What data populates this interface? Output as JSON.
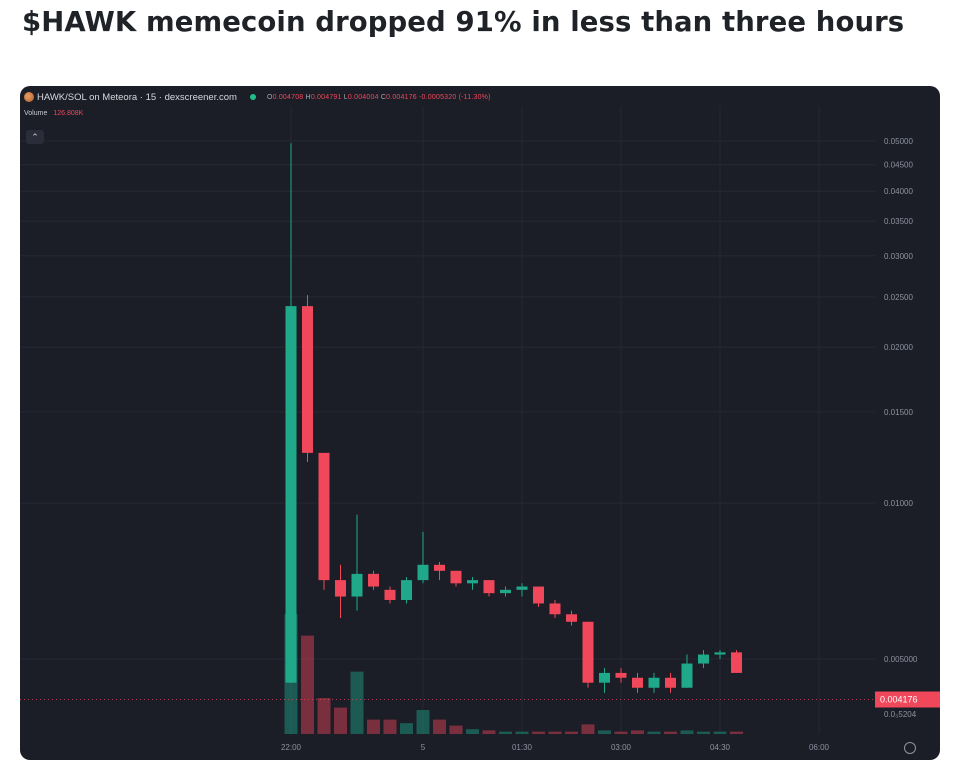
{
  "headline": "$HAWK memecoin dropped 91% in less than three hours",
  "chart_header": {
    "pair": "HAWK/SOL on Meteora · 15 · dexscreener.com",
    "ohlc": {
      "o_label": "O",
      "o": "0.004708",
      "h_label": "H",
      "h": "0.004791",
      "l_label": "L",
      "l": "0.004004",
      "c_label": "C",
      "c": "0.004176",
      "change": "-0.0005320 (-11.30%)"
    },
    "volume_label": "Volume",
    "volume_value": "126.808K"
  },
  "colors": {
    "up": "#1fa98a",
    "down": "#f0485a",
    "background": "#1b1d27",
    "grid": "#262935"
  },
  "icons": [
    "coin-icon",
    "live-dot-icon",
    "collapse-chevron-icon",
    "settings-icon"
  ],
  "chart_data": {
    "type": "candlestick",
    "title": "",
    "price_scale": "log",
    "ylim": [
      0.0035,
      0.05
    ],
    "y_ticks": [
      0.05,
      0.045,
      0.04,
      0.035,
      0.03,
      0.025,
      0.02,
      0.015,
      0.01,
      0.005
    ],
    "y_tick_labels": [
      "0.05000",
      "0.04500",
      "0.04000",
      "0.03500",
      "0.03000",
      "0.02500",
      "0.02000",
      "0.01500",
      "0.01000",
      "0.005000"
    ],
    "x_tick_labels": [
      "22:00",
      "5",
      "01:30",
      "03:00",
      "04:30",
      "06:00"
    ],
    "x_tick_times": [
      0,
      120,
      210,
      300,
      390,
      480
    ],
    "last_price_label": "0.004176",
    "last_price": 0.004176,
    "bottom_label": "0.0₃5204",
    "grid": true,
    "candles": [
      {
        "t": 0,
        "o": 0.0045,
        "h": 0.0495,
        "l": 0.0045,
        "c": 0.024,
        "v": 100
      },
      {
        "t": 15,
        "o": 0.024,
        "h": 0.0252,
        "l": 0.012,
        "c": 0.0125,
        "v": 82
      },
      {
        "t": 30,
        "o": 0.0125,
        "h": 0.0125,
        "l": 0.0068,
        "c": 0.0071,
        "v": 30
      },
      {
        "t": 45,
        "o": 0.0071,
        "h": 0.0076,
        "l": 0.006,
        "c": 0.0066,
        "v": 22
      },
      {
        "t": 60,
        "o": 0.0066,
        "h": 0.0095,
        "l": 0.0062,
        "c": 0.0073,
        "v": 52
      },
      {
        "t": 75,
        "o": 0.0073,
        "h": 0.0074,
        "l": 0.0068,
        "c": 0.0069,
        "v": 12
      },
      {
        "t": 90,
        "o": 0.0068,
        "h": 0.0069,
        "l": 0.0064,
        "c": 0.0065,
        "v": 12
      },
      {
        "t": 105,
        "o": 0.0065,
        "h": 0.0072,
        "l": 0.0064,
        "c": 0.0071,
        "v": 9
      },
      {
        "t": 120,
        "o": 0.0071,
        "h": 0.0088,
        "l": 0.007,
        "c": 0.0076,
        "v": 20
      },
      {
        "t": 135,
        "o": 0.0076,
        "h": 0.0077,
        "l": 0.0071,
        "c": 0.0074,
        "v": 12
      },
      {
        "t": 150,
        "o": 0.0074,
        "h": 0.0074,
        "l": 0.0069,
        "c": 0.007,
        "v": 7
      },
      {
        "t": 165,
        "o": 0.007,
        "h": 0.0072,
        "l": 0.0068,
        "c": 0.0071,
        "v": 4
      },
      {
        "t": 180,
        "o": 0.0071,
        "h": 0.0071,
        "l": 0.0066,
        "c": 0.0067,
        "v": 3
      },
      {
        "t": 195,
        "o": 0.0067,
        "h": 0.0069,
        "l": 0.0066,
        "c": 0.0068,
        "v": 2
      },
      {
        "t": 210,
        "o": 0.0068,
        "h": 0.007,
        "l": 0.0066,
        "c": 0.0069,
        "v": 2
      },
      {
        "t": 225,
        "o": 0.0069,
        "h": 0.0069,
        "l": 0.0063,
        "c": 0.0064,
        "v": 2
      },
      {
        "t": 240,
        "o": 0.0064,
        "h": 0.0065,
        "l": 0.006,
        "c": 0.0061,
        "v": 2
      },
      {
        "t": 255,
        "o": 0.0061,
        "h": 0.0062,
        "l": 0.0058,
        "c": 0.0059,
        "v": 2
      },
      {
        "t": 270,
        "o": 0.0059,
        "h": 0.0059,
        "l": 0.0044,
        "c": 0.0045,
        "v": 8
      },
      {
        "t": 285,
        "o": 0.0045,
        "h": 0.0048,
        "l": 0.0043,
        "c": 0.0047,
        "v": 3
      },
      {
        "t": 300,
        "o": 0.0047,
        "h": 0.0048,
        "l": 0.0045,
        "c": 0.0046,
        "v": 2
      },
      {
        "t": 315,
        "o": 0.0046,
        "h": 0.0047,
        "l": 0.0043,
        "c": 0.0044,
        "v": 3
      },
      {
        "t": 330,
        "o": 0.0044,
        "h": 0.0047,
        "l": 0.0043,
        "c": 0.0046,
        "v": 2
      },
      {
        "t": 345,
        "o": 0.0046,
        "h": 0.0047,
        "l": 0.0043,
        "c": 0.0044,
        "v": 2
      },
      {
        "t": 360,
        "o": 0.0044,
        "h": 0.0051,
        "l": 0.0044,
        "c": 0.0049,
        "v": 3
      },
      {
        "t": 375,
        "o": 0.0049,
        "h": 0.0052,
        "l": 0.0048,
        "c": 0.0051,
        "v": 2
      },
      {
        "t": 390,
        "o": 0.0051,
        "h": 0.0052,
        "l": 0.005,
        "c": 0.00515,
        "v": 2
      },
      {
        "t": 405,
        "o": 0.00515,
        "h": 0.0052,
        "l": 0.0047,
        "c": 0.0047,
        "v": 2
      }
    ]
  }
}
